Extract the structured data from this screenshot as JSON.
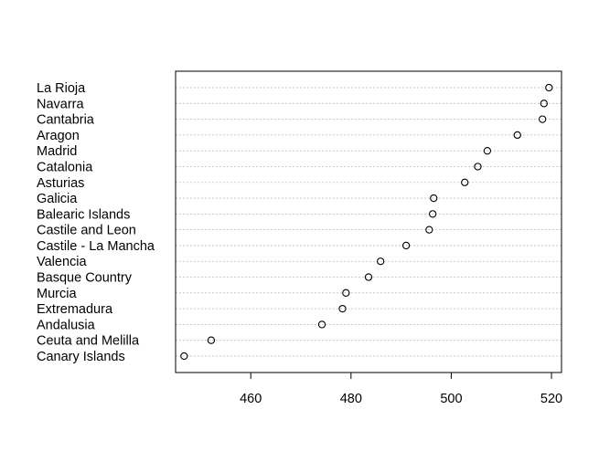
{
  "chart_data": {
    "type": "scatter",
    "subtype": "dotchart",
    "title": "",
    "xlabel": "",
    "ylabel": "",
    "xlim": [
      445,
      522
    ],
    "xticks": [
      460,
      480,
      500,
      520
    ],
    "grid": "horizontal dotted guide per category",
    "legend": "none",
    "categories": [
      "La Rioja",
      "Navarra",
      "Cantabria",
      "Aragon",
      "Madrid",
      "Catalonia",
      "Asturias",
      "Galicia",
      "Balearic Islands",
      "Castile and Leon",
      "Castile - La Mancha",
      "Valencia",
      "Basque Country",
      "Murcia",
      "Extremadura",
      "Andalusia",
      "Ceuta and Melilla",
      "Canary Islands"
    ],
    "values": [
      519.5,
      518.5,
      518.2,
      513.2,
      507.2,
      505.3,
      502.7,
      496.5,
      496.3,
      495.6,
      491.0,
      485.9,
      483.5,
      479.0,
      478.3,
      474.2,
      452.1,
      446.7
    ]
  },
  "colors": {
    "point_stroke": "#000000",
    "guide": "#bdbdbd",
    "frame": "#000000"
  }
}
